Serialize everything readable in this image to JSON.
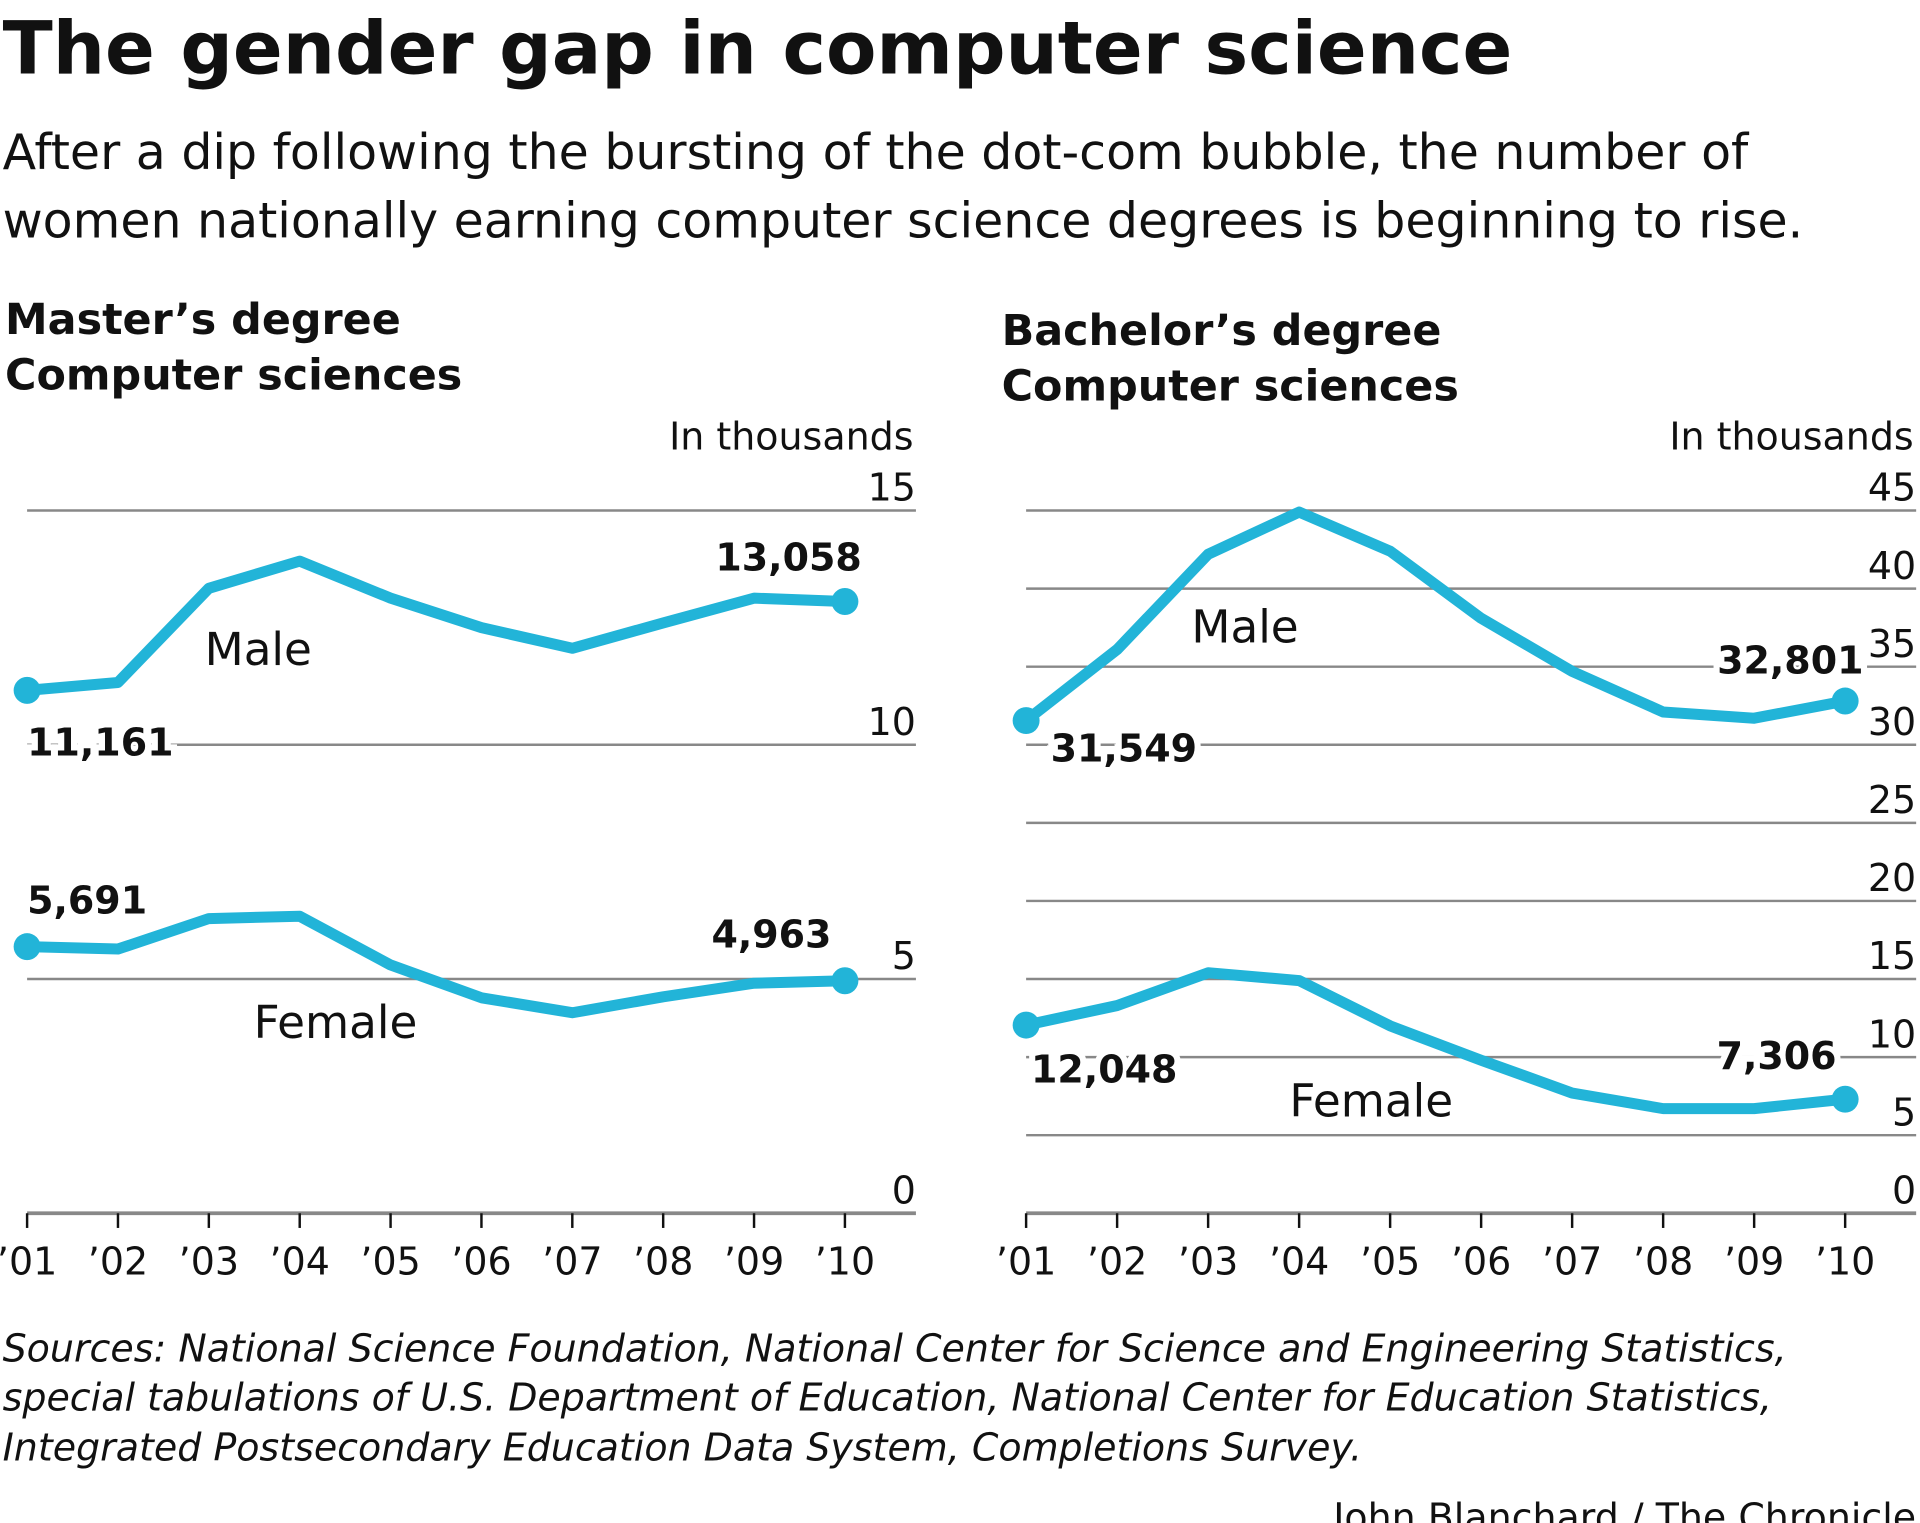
{
  "title": "The gender gap in computer science",
  "subtitle": [
    "After a dip following the bursting of the dot-com bubble, the number of",
    "women nationally earning computer science degrees is beginning to rise."
  ],
  "chart_data": [
    {
      "type": "line",
      "title": "Master’s degree",
      "subtitle": "Computer sciences",
      "ylabel": "In thousands",
      "categories": [
        "’01",
        "’02",
        "’03",
        "’04",
        "’05",
        "’06",
        "’07",
        "’08",
        "’09",
        "’10"
      ],
      "ylim": [
        0,
        15
      ],
      "yticks": [
        0,
        5,
        10,
        15
      ],
      "grid": true,
      "series": [
        {
          "name": "Male",
          "color": "#22b4d8",
          "values": [
            11.161,
            11.33,
            13.34,
            13.92,
            13.13,
            12.5,
            12.06,
            12.6,
            13.13,
            13.058
          ],
          "value_labels": [
            "11,161",
            null,
            null,
            null,
            null,
            null,
            null,
            null,
            null,
            "13,058"
          ]
        },
        {
          "name": "Female",
          "color": "#22b4d8",
          "values": [
            5.691,
            5.64,
            6.29,
            6.34,
            5.3,
            4.6,
            4.28,
            4.62,
            4.91,
            4.963
          ],
          "value_labels": [
            "5,691",
            null,
            null,
            null,
            null,
            null,
            null,
            null,
            null,
            "4,963"
          ]
        }
      ]
    },
    {
      "type": "line",
      "title": "Bachelor’s degree",
      "subtitle": "Computer sciences",
      "ylabel": "In thousands",
      "categories": [
        "’01",
        "’02",
        "’03",
        "’04",
        "’05",
        "’06",
        "’07",
        "’08",
        "’09",
        "’10"
      ],
      "ylim": [
        0,
        45
      ],
      "yticks": [
        0,
        5,
        10,
        15,
        20,
        25,
        30,
        35,
        40,
        45
      ],
      "grid": true,
      "series": [
        {
          "name": "Male",
          "color": "#22b4d8",
          "values": [
            31.549,
            36.1,
            42.2,
            44.9,
            42.4,
            38.1,
            34.7,
            32.1,
            31.7,
            32.801
          ],
          "value_labels": [
            "31,549",
            null,
            null,
            null,
            null,
            null,
            null,
            null,
            null,
            "32,801"
          ]
        },
        {
          "name": "Female",
          "color": "#22b4d8",
          "values": [
            12.048,
            13.3,
            15.4,
            14.9,
            12.0,
            9.8,
            7.7,
            6.7,
            6.7,
            7.306
          ],
          "value_labels": [
            "12,048",
            null,
            null,
            null,
            null,
            null,
            null,
            null,
            null,
            "7,306"
          ]
        }
      ]
    }
  ],
  "source": [
    "Sources: National Science Foundation, National Center for Science and Engineering Statistics,",
    "special tabulations of U.S. Department of Education, National Center for Education Statistics,",
    "Integrated Postsecondary Education Data System, Completions Survey."
  ],
  "credit": "John Blanchard / The Chronicle"
}
